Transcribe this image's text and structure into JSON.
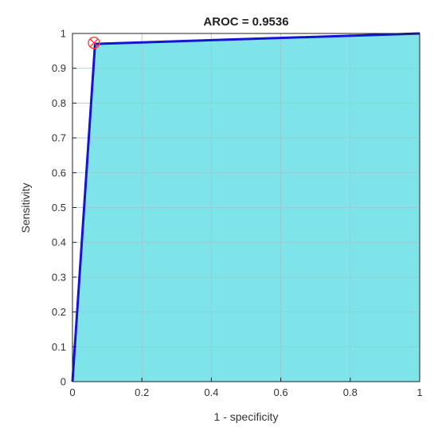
{
  "chart_data": {
    "type": "area",
    "title": "AROC = 0.9536",
    "xlabel": "1 - specificity",
    "ylabel": "Sensitivity",
    "xlim": [
      0,
      1
    ],
    "ylim": [
      0,
      1
    ],
    "x_ticks": [
      "0",
      "0.2",
      "0.4",
      "0.6",
      "0.8",
      "1"
    ],
    "y_ticks": [
      "0",
      "0.1",
      "0.2",
      "0.3",
      "0.4",
      "0.5",
      "0.6",
      "0.7",
      "0.8",
      "0.9",
      "1"
    ],
    "grid": true,
    "series": [
      {
        "x": [
          0,
          0.065,
          1
        ],
        "y": [
          0,
          0.97,
          1
        ]
      }
    ],
    "operating_point": {
      "x": 0.062,
      "y": 0.973
    },
    "colors": {
      "fill": "#7fe3ea",
      "line": "#1414d2",
      "marker": "#ff3333",
      "grid": "#9fc6cb",
      "axis": "#222222"
    }
  }
}
